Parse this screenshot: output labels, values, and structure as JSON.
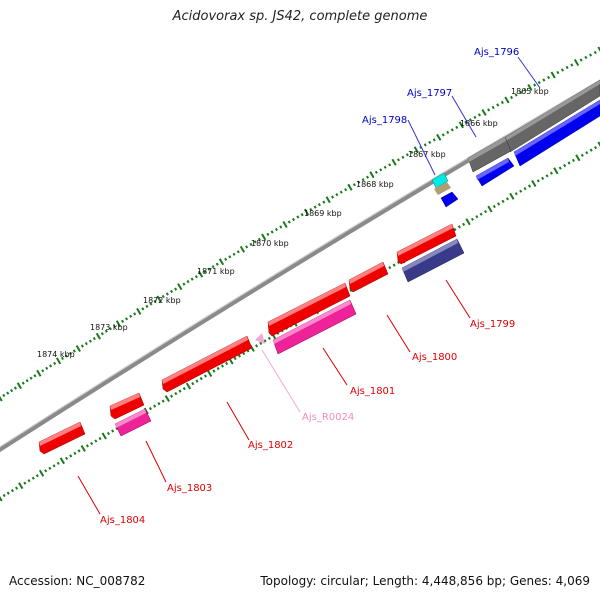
{
  "title": "Acidovorax sp. JS42, complete genome",
  "footer": {
    "accession": "Accession: NC_008782",
    "topology": "Topology: circular; Length: 4,448,856 bp; Genes: 4,069"
  },
  "kbp_labels": [
    "1865 kbp",
    "1866 kbp",
    "1867 kbp",
    "1868 kbp",
    "1869 kbp",
    "1870 kbp",
    "1871 kbp",
    "1872 kbp",
    "1873 kbp",
    "1874 kbp"
  ],
  "gene_labels": [
    {
      "text": "Ajs_1796",
      "color": "#0000cc"
    },
    {
      "text": "Ajs_1797",
      "color": "#0000cc"
    },
    {
      "text": "Ajs_1798",
      "color": "#0000cc"
    },
    {
      "text": "Ajs_1799",
      "color": "#dd0000"
    },
    {
      "text": "Ajs_1800",
      "color": "#dd0000"
    },
    {
      "text": "Ajs_1801",
      "color": "#dd0000"
    },
    {
      "text": "Ajs_R0024",
      "color": "#f08cc0"
    },
    {
      "text": "Ajs_1802",
      "color": "#dd0000"
    },
    {
      "text": "Ajs_1803",
      "color": "#dd0000"
    },
    {
      "text": "Ajs_1804",
      "color": "#dd0000"
    }
  ],
  "colors": {
    "backbone": "#8a8a8a",
    "tick": "#1a7a1a",
    "cds_forward_red": "#ee0000",
    "cds_magenta": "#ee2299",
    "cds_blue": "#0000ee",
    "cds_gray": "#666666",
    "cds_navy": "#3a3a8a",
    "trna_pink": "#f08cc0"
  }
}
